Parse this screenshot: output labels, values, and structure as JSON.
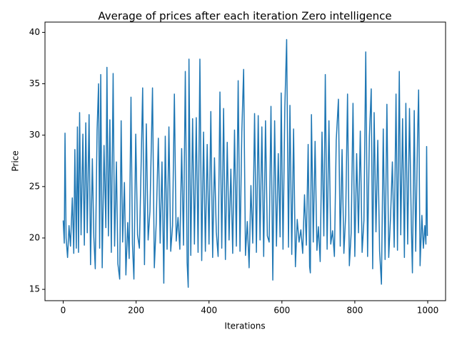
{
  "chart_data": {
    "type": "line",
    "title": "Average of prices after each iteration Zero intelligence",
    "x_label": "Iterations",
    "y_label": "Price",
    "x": [
      0,
      3,
      5,
      8,
      12,
      16,
      20,
      25,
      29,
      32,
      36,
      39,
      42,
      45,
      49,
      54,
      58,
      62,
      66,
      71,
      75,
      80,
      84,
      88,
      93,
      97,
      100,
      103,
      107,
      112,
      117,
      120,
      124,
      128,
      132,
      137,
      141,
      146,
      150,
      155,
      159,
      163,
      168,
      172,
      177,
      181,
      186,
      190,
      194,
      199,
      204,
      209,
      214,
      218,
      223,
      228,
      233,
      238,
      245,
      250,
      255,
      261,
      266,
      271,
      276,
      280,
      285,
      290,
      295,
      300,
      305,
      310,
      315,
      320,
      325,
      330,
      335,
      340,
      343,
      345,
      350,
      355,
      360,
      365,
      370,
      375,
      380,
      385,
      390,
      395,
      400,
      405,
      410,
      415,
      420,
      425,
      430,
      435,
      440,
      445,
      450,
      455,
      460,
      465,
      470,
      475,
      480,
      485,
      490,
      495,
      500,
      505,
      510,
      515,
      520,
      525,
      530,
      535,
      540,
      545,
      550,
      555,
      560,
      565,
      570,
      575,
      580,
      585,
      590,
      595,
      598,
      603,
      608,
      613,
      618,
      622,
      627,
      632,
      637,
      642,
      647,
      652,
      657,
      662,
      667,
      672,
      676,
      678,
      681,
      686,
      691,
      696,
      700,
      705,
      710,
      715,
      719,
      724,
      729,
      734,
      739,
      744,
      749,
      755,
      760,
      765,
      770,
      775,
      780,
      785,
      790,
      795,
      800,
      805,
      810,
      815,
      820,
      825,
      830,
      835,
      840,
      845,
      849,
      853,
      858,
      863,
      868,
      873,
      878,
      883,
      888,
      893,
      898,
      903,
      908,
      913,
      917,
      922,
      926,
      931,
      936,
      940,
      945,
      950,
      955,
      958,
      963,
      967,
      972,
      975,
      979,
      984,
      988,
      992,
      995,
      997,
      999
    ],
    "series": [
      {
        "name": "Price",
        "color": "#1f77b4",
        "values": [
          21.7,
          19.5,
          30.2,
          20,
          18.1,
          21.2,
          19.2,
          23.9,
          18.5,
          28.6,
          19,
          30.8,
          18.6,
          32.2,
          20.3,
          30.1,
          19.3,
          31.2,
          20.5,
          32,
          17.4,
          27.7,
          20.1,
          17,
          30.5,
          35,
          19,
          35.9,
          17.1,
          29,
          21,
          36.6,
          20.2,
          31.5,
          18.6,
          36,
          19.2,
          27.4,
          17.5,
          16,
          31.4,
          19.6,
          25.4,
          16.4,
          21.5,
          18,
          33.7,
          19.4,
          16,
          30.1,
          20.3,
          19,
          27.5,
          34.6,
          17.4,
          31.1,
          19.8,
          22.6,
          34.6,
          17.1,
          21.3,
          29.7,
          19.5,
          27.4,
          15.6,
          29.9,
          18.9,
          30.8,
          18.7,
          21.2,
          34,
          19.7,
          22,
          18.9,
          28.7,
          19.3,
          36.2,
          17.6,
          15.2,
          37.4,
          18.3,
          31.6,
          19.4,
          31.7,
          18.6,
          37.4,
          17.8,
          30.3,
          18.7,
          29.1,
          19.4,
          32.3,
          18.1,
          27.8,
          20.6,
          18.2,
          34.2,
          19,
          32.6,
          17.9,
          29.3,
          19.8,
          26.7,
          18.5,
          30.5,
          19.2,
          35.3,
          18.7,
          30.3,
          36.4,
          18.3,
          21.6,
          17.1,
          25.1,
          19.5,
          32.1,
          18.6,
          31.9,
          19.8,
          30.8,
          18.2,
          31.4,
          20.2,
          19.6,
          32.8,
          15.9,
          31.4,
          19.2,
          28.2,
          20.1,
          34.1,
          18.9,
          32.7,
          39.3,
          19.1,
          32.9,
          18.4,
          30.6,
          17.2,
          21.8,
          19.6,
          20.8,
          18.5,
          24.2,
          19.3,
          29.1,
          17.2,
          16.6,
          32,
          19.6,
          29.4,
          18.8,
          21.1,
          17.7,
          30.3,
          20.2,
          35.9,
          18.9,
          31.4,
          19.4,
          20.7,
          18.2,
          29.5,
          33.5,
          19.2,
          28.6,
          18.5,
          22.3,
          34,
          17.3,
          20.5,
          33.1,
          18.2,
          28.2,
          20.5,
          30.4,
          18.6,
          21.7,
          38.1,
          18.2,
          29.9,
          34.5,
          17,
          32.2,
          20.6,
          29.5,
          18.7,
          15.5,
          30.6,
          17.9,
          33,
          18.1,
          22,
          27.4,
          19.1,
          34,
          18.8,
          36.2,
          20.3,
          31.6,
          18.1,
          33.1,
          19.4,
          32.6,
          21.2,
          16.6,
          32.4,
          18.7,
          29.7,
          34.4,
          17.3,
          22.2,
          19,
          21.2,
          19.4,
          28.9,
          20.2
        ]
      }
    ],
    "xlim": [
      -49.95,
      1048.95
    ],
    "ylim": [
      13.9,
      41.0
    ],
    "xticks": [
      0,
      200,
      400,
      600,
      800,
      1000
    ],
    "yticks": [
      15,
      20,
      25,
      30,
      35,
      40
    ]
  }
}
